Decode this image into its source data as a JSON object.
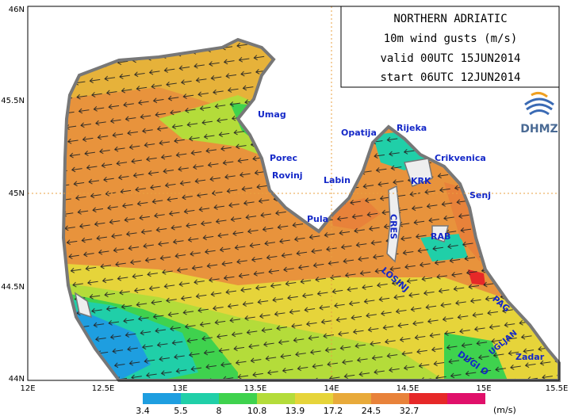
{
  "title_box": {
    "lines": [
      "NORTHERN ADRIATIC",
      "10m wind gusts (m/s)",
      "valid 00UTC 15JUN2014",
      "start 06UTC 12JUN2014"
    ]
  },
  "logo": "DHMZ",
  "x_axis": [
    "12E",
    "12.5E",
    "13E",
    "13.5E",
    "14E",
    "14.5E",
    "15E",
    "15.5E"
  ],
  "y_axis": [
    "46N",
    "45.5N",
    "45N",
    "44.5N",
    "44N"
  ],
  "places": [
    "Umag",
    "Porec",
    "Rovinj",
    "Opatija",
    "Rijeka",
    "Crikvenica",
    "Labin",
    "KRK",
    "Senj",
    "Pula",
    "CRES",
    "RAB",
    "LOSINJ",
    "PAG",
    "DUGI O",
    "UGLJAN",
    "Zadar"
  ],
  "legend": {
    "values": [
      3.4,
      5.5,
      8,
      10.8,
      13.9,
      17.2,
      24.5,
      32.7
    ],
    "colors": [
      "#1e9ee0",
      "#20cfa8",
      "#3fd24e",
      "#b4dc3a",
      "#e6d43a",
      "#e8aa3a",
      "#e8823a",
      "#e62828",
      "#e0106a"
    ],
    "unit": "(m/s)"
  }
}
